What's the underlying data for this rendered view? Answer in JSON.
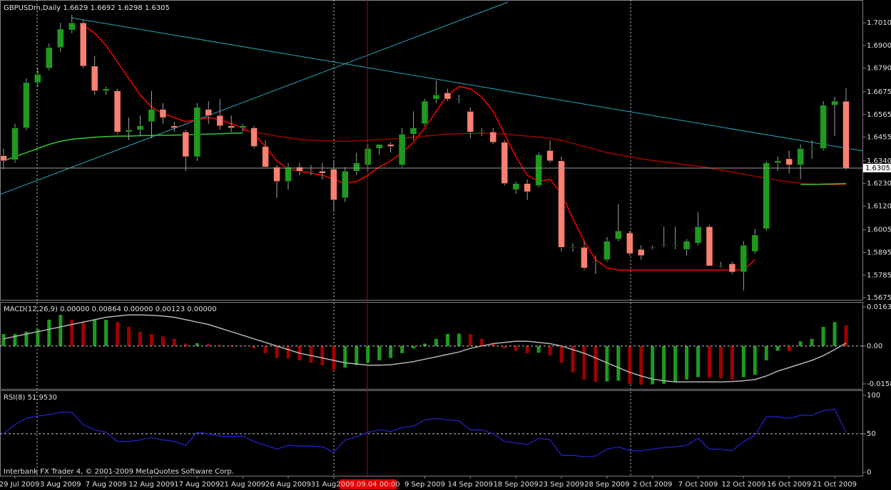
{
  "chart_data": [
    {
      "type": "candlestick",
      "title": "GBPUSDm,Daily  1.6629 1.6692 1.6298 1.6305",
      "categories": [
        null,
        "29 Jul 2009",
        null,
        null,
        null,
        "3 Aug 2009",
        null,
        null,
        null,
        "7 Aug 2009",
        null,
        null,
        null,
        "12 Aug 2009",
        null,
        null,
        null,
        "17 Aug 2009",
        null,
        null,
        null,
        "21 Aug 2009",
        null,
        null,
        null,
        "26 Aug 2009",
        null,
        null,
        null,
        "31 Aug 2009",
        null,
        null,
        null,
        null,
        null,
        null,
        null,
        "9 Sep 2009",
        null,
        null,
        null,
        "14 Sep 2009",
        null,
        null,
        null,
        "18 Sep 2009",
        null,
        null,
        null,
        "23 Sep 2009",
        null,
        null,
        null,
        "28 Sep 2009",
        null,
        null,
        null,
        "2 Oct 2009",
        null,
        null,
        null,
        "7 Oct 2009",
        null,
        null,
        null,
        "12 Oct 2009",
        null,
        null,
        null,
        "16 Oct 2009",
        null,
        null,
        null,
        "21 Oct 2009",
        null
      ],
      "crosshair_label": "2009.09.04 00:00",
      "open": [
        1.6365,
        1.6345,
        1.65,
        1.672,
        1.679,
        1.689,
        1.6975,
        1.701,
        1.68,
        1.668,
        1.668,
        1.648,
        1.649,
        1.653,
        1.659,
        1.651,
        1.648,
        1.636,
        1.659,
        1.656,
        1.651,
        1.65,
        1.65,
        1.641,
        1.631,
        1.624,
        1.631,
        1.629,
        1.629,
        1.63,
        1.616,
        1.629,
        1.632,
        1.64,
        1.642,
        1.632,
        1.647,
        1.652,
        1.664,
        1.667,
        1.664,
        1.658,
        1.648,
        1.648,
        1.643,
        1.62,
        1.623,
        1.622,
        1.639,
        1.634,
        1.592,
        1.592,
        1.585,
        1.586,
        1.596,
        1.599,
        1.591,
        1.592,
        1.593,
        1.593,
        1.591,
        1.594,
        1.602,
        1.583,
        1.584,
        1.58,
        1.59,
        1.601,
        1.633,
        1.635,
        1.632,
        1.64,
        1.64,
        1.661,
        1.6629
      ],
      "high": [
        1.64,
        1.652,
        1.674,
        1.679,
        1.691,
        1.701,
        1.705,
        1.7025,
        1.685,
        1.67,
        1.669,
        1.655,
        1.656,
        1.668,
        1.662,
        1.653,
        1.649,
        1.662,
        1.663,
        1.664,
        1.656,
        1.652,
        1.651,
        1.644,
        1.632,
        1.633,
        1.633,
        1.632,
        1.633,
        1.634,
        1.631,
        1.638,
        1.642,
        1.642,
        1.643,
        1.65,
        1.658,
        1.664,
        1.673,
        1.669,
        1.666,
        1.66,
        1.65,
        1.65,
        1.644,
        1.624,
        1.625,
        1.638,
        1.644,
        1.636,
        1.594,
        1.595,
        1.588,
        1.597,
        1.613,
        1.6,
        1.593,
        1.593,
        1.602,
        1.602,
        1.596,
        1.609,
        1.603,
        1.585,
        1.585,
        1.595,
        1.601,
        1.634,
        1.636,
        1.639,
        1.642,
        1.644,
        1.663,
        1.665,
        1.6692
      ],
      "low": [
        1.63,
        1.633,
        1.649,
        1.67,
        1.678,
        1.687,
        1.696,
        1.679,
        1.666,
        1.666,
        1.647,
        1.644,
        1.646,
        1.645,
        1.652,
        1.648,
        1.629,
        1.634,
        1.652,
        1.649,
        1.648,
        1.648,
        1.64,
        1.631,
        1.616,
        1.62,
        1.627,
        1.627,
        1.625,
        1.61,
        1.614,
        1.627,
        1.629,
        1.637,
        1.638,
        1.631,
        1.644,
        1.651,
        1.662,
        1.663,
        1.662,
        1.645,
        1.646,
        1.642,
        1.622,
        1.618,
        1.615,
        1.621,
        1.633,
        1.59,
        1.59,
        1.581,
        1.579,
        1.585,
        1.595,
        1.588,
        1.586,
        1.591,
        1.592,
        1.591,
        1.588,
        1.593,
        1.583,
        1.582,
        1.579,
        1.571,
        1.589,
        1.6,
        1.629,
        1.628,
        1.625,
        1.635,
        1.639,
        1.646,
        1.6298
      ],
      "close": [
        1.634,
        1.65,
        1.672,
        1.676,
        1.689,
        1.698,
        1.701,
        1.68,
        1.668,
        1.669,
        1.648,
        1.649,
        1.651,
        1.659,
        1.655,
        1.65,
        1.636,
        1.66,
        1.656,
        1.651,
        1.65,
        1.651,
        1.641,
        1.631,
        1.624,
        1.631,
        1.629,
        1.629,
        1.628,
        1.615,
        1.629,
        1.633,
        1.64,
        1.642,
        1.641,
        1.647,
        1.65,
        1.663,
        1.666,
        1.664,
        1.664,
        1.648,
        1.648,
        1.643,
        1.623,
        1.623,
        1.619,
        1.637,
        1.634,
        1.592,
        1.592,
        1.582,
        1.585,
        1.595,
        1.6,
        1.589,
        1.588,
        1.592,
        1.593,
        1.593,
        1.595,
        1.602,
        1.583,
        1.583,
        1.58,
        1.593,
        1.598,
        1.633,
        1.634,
        1.632,
        1.64,
        1.64,
        1.661,
        1.663,
        1.6305
      ],
      "up_color": "#1e9a1e",
      "down_color": "#fa8072",
      "wick_color": "#a0a0a0",
      "lines": [
        {
          "color": "#ff0000",
          "values": [
            null,
            null,
            null,
            null,
            null,
            null,
            null,
            1.7,
            1.696,
            1.69,
            1.682,
            1.674,
            1.666,
            1.66,
            1.657,
            1.655,
            1.653,
            1.654,
            1.655,
            1.654,
            1.652,
            1.65,
            1.647,
            1.641,
            1.634,
            1.63,
            1.629,
            1.628,
            1.627,
            1.625,
            1.623,
            1.624,
            1.627,
            1.631,
            1.634,
            1.638,
            1.643,
            1.65,
            1.658,
            1.666,
            1.67,
            1.669,
            1.665,
            1.658,
            1.647,
            1.636,
            1.627,
            1.624,
            1.625,
            1.618,
            1.606,
            1.595,
            1.586,
            1.582,
            1.581,
            1.581,
            1.581,
            1.581,
            1.581,
            1.581,
            1.581,
            1.581,
            1.581,
            1.581,
            1.581,
            1.581,
            1.586,
            null,
            null,
            null,
            null,
            null,
            null,
            null,
            null
          ]
        },
        {
          "color": "#a00000",
          "values": [
            null,
            null,
            null,
            null,
            null,
            null,
            null,
            null,
            null,
            null,
            null,
            null,
            null,
            null,
            null,
            null,
            null,
            null,
            null,
            null,
            null,
            1.649,
            1.648,
            1.647,
            1.646,
            1.6452,
            1.6445,
            1.644,
            1.6438,
            1.6436,
            1.6435,
            1.6437,
            1.644,
            1.6443,
            1.6446,
            1.645,
            1.6455,
            1.646,
            1.6465,
            1.647,
            1.6472,
            1.6473,
            1.6474,
            1.6473,
            1.647,
            1.6465,
            1.646,
            1.6455,
            1.645,
            1.644,
            1.6425,
            1.641,
            1.6395,
            1.638,
            1.637,
            1.636,
            1.635,
            1.6342,
            1.6335,
            1.6328,
            1.632,
            1.6315,
            1.6305,
            1.6295,
            1.6285,
            1.6275,
            1.6265,
            1.6255,
            1.6245,
            1.6238,
            1.6232,
            1.6228,
            1.6225,
            1.6224,
            1.6224
          ]
        },
        {
          "color": "#33c733",
          "values": [
            1.634,
            1.636,
            1.638,
            1.64,
            1.642,
            1.6435,
            1.6445,
            1.645,
            1.6455,
            1.6458,
            1.646,
            1.646,
            1.6462,
            1.6463,
            1.6465,
            1.6465,
            1.6466,
            1.6468,
            1.647,
            1.6472,
            1.6474,
            1.6475,
            null,
            null,
            null,
            null,
            null,
            null,
            null,
            null,
            null,
            null,
            null,
            null,
            null,
            null,
            null,
            null,
            null,
            null,
            null,
            null,
            null,
            null,
            null,
            null,
            null,
            null,
            null,
            null,
            null,
            null,
            null,
            null,
            null,
            null,
            null,
            null,
            null,
            null,
            null,
            null,
            null,
            null,
            null,
            null,
            null,
            null,
            null,
            null,
            1.6225,
            1.6225,
            1.6227,
            1.6228,
            1.623
          ]
        }
      ],
      "current_price": 1.6305,
      "ylim": [
        1.5665,
        1.7121
      ],
      "yticks": [
        {
          "value": 1.701,
          "label": "1.7010"
        },
        {
          "value": 1.69,
          "label": "1.6900"
        },
        {
          "value": 1.679,
          "label": "1.6790"
        },
        1.6675,
        1.6565,
        1.6455,
        {
          "value": 1.634,
          "label": "1.6340"
        },
        {
          "value": 1.623,
          "label": "1.6230"
        },
        {
          "value": 1.612,
          "label": "1.6120"
        },
        1.6005,
        1.5895,
        1.5785,
        1.5675
      ]
    },
    {
      "type": "bar",
      "title": "MACD(12,26,9) 0.00000 0.00864 0.00000 0.00123 0.00000",
      "values": [
        0.005,
        0.005,
        0.006,
        0.007,
        0.011,
        0.013,
        0.011,
        0.01,
        0.011,
        0.011,
        0.01,
        0.008,
        0.006,
        0.005,
        0.004,
        0.003,
        0.001,
        0.0012,
        0.001,
        0.0004,
        0.0003,
        0.0002,
        -0.001,
        -0.003,
        -0.005,
        -0.0052,
        -0.006,
        -0.007,
        -0.008,
        -0.01,
        -0.009,
        -0.008,
        -0.007,
        -0.006,
        -0.005,
        -0.003,
        -0.001,
        0.001,
        0.003,
        0.005,
        0.0052,
        0.005,
        0.003,
        0.001,
        -0.001,
        -0.002,
        -0.003,
        -0.0028,
        -0.004,
        -0.007,
        -0.011,
        -0.014,
        -0.015,
        -0.0148,
        -0.0145,
        -0.016,
        -0.0162,
        -0.016,
        -0.0158,
        -0.015,
        -0.014,
        -0.013,
        -0.0132,
        -0.0134,
        -0.014,
        -0.013,
        -0.012,
        -0.006,
        -0.002,
        -0.0022,
        0.002,
        0.003,
        0.008,
        0.01,
        0.00864
      ],
      "up_color": "#1e9a1e",
      "down_color": "#a00000",
      "signal_color": "#b4b4b4",
      "signal_values": [
        0.003,
        0.004,
        0.005,
        0.006,
        0.007,
        0.008,
        0.009,
        0.01,
        0.011,
        0.012,
        0.0125,
        0.013,
        0.013,
        0.0128,
        0.0125,
        0.012,
        0.011,
        0.01,
        0.009,
        0.0075,
        0.006,
        0.0045,
        0.003,
        0.0015,
        0.0,
        -0.0015,
        -0.003,
        -0.004,
        -0.005,
        -0.006,
        -0.007,
        -0.0075,
        -0.008,
        -0.008,
        -0.0078,
        -0.0072,
        -0.0065,
        -0.0055,
        -0.0045,
        -0.0035,
        -0.0025,
        -0.001,
        0.0,
        0.001,
        0.0015,
        0.002,
        0.002,
        0.0015,
        0.001,
        0.0,
        -0.0015,
        -0.003,
        -0.005,
        -0.007,
        -0.009,
        -0.011,
        -0.0125,
        -0.0138,
        -0.0145,
        -0.015,
        -0.015,
        -0.015,
        -0.015,
        -0.015,
        -0.0148,
        -0.0145,
        -0.014,
        -0.0125,
        -0.0105,
        -0.009,
        -0.0075,
        -0.006,
        -0.004,
        -0.0015,
        0.00123
      ],
      "ylim": [
        -0.0179,
        0.0184
      ],
      "yticks": [
        0.01635,
        {
          "value": 0,
          "label": "0.00"
        },
        -0.0158
      ],
      "level_lines": [
        0
      ]
    },
    {
      "type": "line",
      "title": "RSI(8) 51.9530",
      "annotation": "Interbank FX Trader 4, © 2001-2009 MetaQuotes Software Corp.",
      "color": "#2020c8",
      "values": [
        50,
        62,
        70,
        73,
        75,
        78,
        78,
        62,
        55,
        52,
        40,
        40,
        42,
        45,
        42,
        40,
        35,
        52,
        50,
        47,
        46,
        47,
        40,
        35,
        30,
        35,
        34,
        34,
        33,
        26,
        42,
        46,
        52,
        55,
        53,
        58,
        60,
        68,
        70,
        68,
        67,
        55,
        55,
        50,
        40,
        38,
        36,
        44,
        42,
        22,
        22,
        20,
        21,
        30,
        33,
        28,
        28,
        30,
        32,
        33,
        35,
        44,
        30,
        30,
        28,
        40,
        48,
        72,
        72,
        70,
        74,
        74,
        80,
        82,
        51.953
      ],
      "ylim": [
        -4.6,
        106.5
      ],
      "yticks": [
        100,
        50,
        0
      ],
      "level_lines": [
        50
      ]
    }
  ]
}
